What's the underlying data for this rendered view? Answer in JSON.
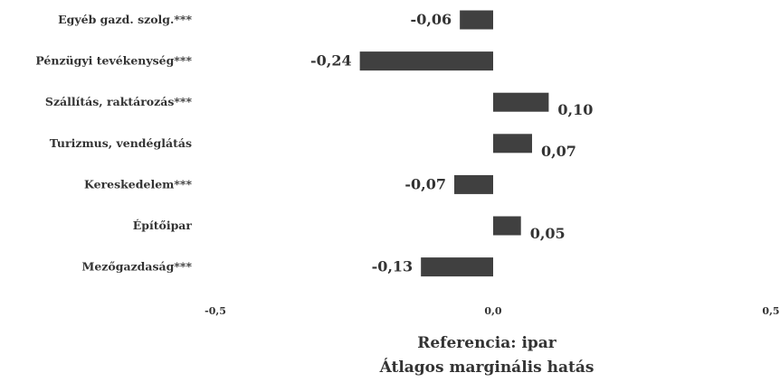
{
  "chart_data": {
    "type": "bar",
    "orientation": "horizontal",
    "categories": [
      "Egyéb gazd. szolg.***",
      "Pénzügyi tevékenység***",
      "Szállítás, raktározás***",
      "Turizmus, vendéglátás",
      "Kereskedelem***",
      "Építőipar",
      "Mezőgazdaság***"
    ],
    "values": [
      -0.06,
      -0.24,
      0.1,
      0.07,
      -0.07,
      0.05,
      -0.13
    ],
    "value_labels": [
      "-0,06",
      "-0,24",
      "0,10",
      "0,07",
      "-0,07",
      "0,05",
      "-0,13"
    ],
    "xlim": [
      -0.5,
      0.5
    ],
    "ticks": [
      -0.5,
      0.0,
      0.5
    ],
    "tick_labels": [
      "-0,5",
      "0,0",
      "0,5"
    ],
    "xlabel_lines": [
      "Referencia: ipar",
      "Átlagos marginális hatás"
    ],
    "bar_color": "#404040",
    "grid": false,
    "legend": "none"
  }
}
